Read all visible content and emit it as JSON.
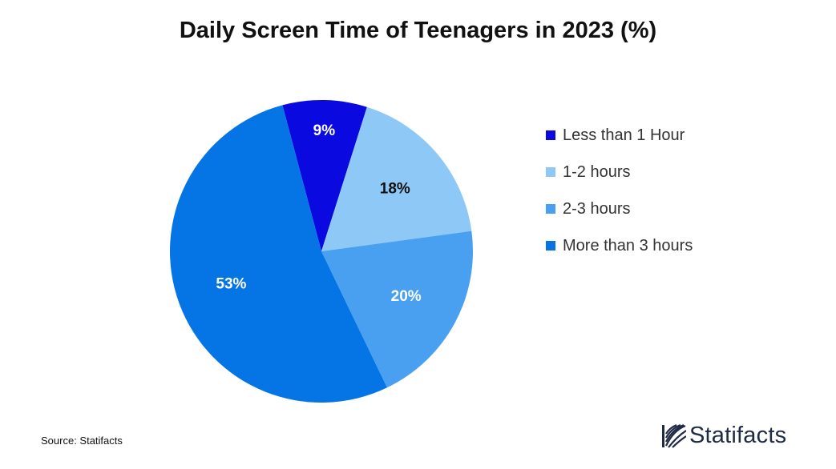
{
  "chart_data": {
    "type": "pie",
    "title": "Daily Screen Time of Teenagers in 2023 (%)",
    "slices": [
      {
        "label": "Less than 1 Hour",
        "value": 9,
        "display": "9%",
        "color": "#0a0ae0",
        "text_color": "#ffffff"
      },
      {
        "label": "1-2 hours",
        "value": 18,
        "display": "18%",
        "color": "#8ec8f6",
        "text_color": "#111111"
      },
      {
        "label": "2-3 hours",
        "value": 20,
        "display": "20%",
        "color": "#4aa0f0",
        "text_color": "#ffffff"
      },
      {
        "label": "More than 3 hours",
        "value": 53,
        "display": "53%",
        "color": "#0575e6",
        "text_color": "#ffffff"
      }
    ],
    "legend_position": "right"
  },
  "footer": {
    "source": "Source: Statifacts",
    "brand": "Statifacts",
    "brand_icon": "statifacts-logo-icon"
  }
}
